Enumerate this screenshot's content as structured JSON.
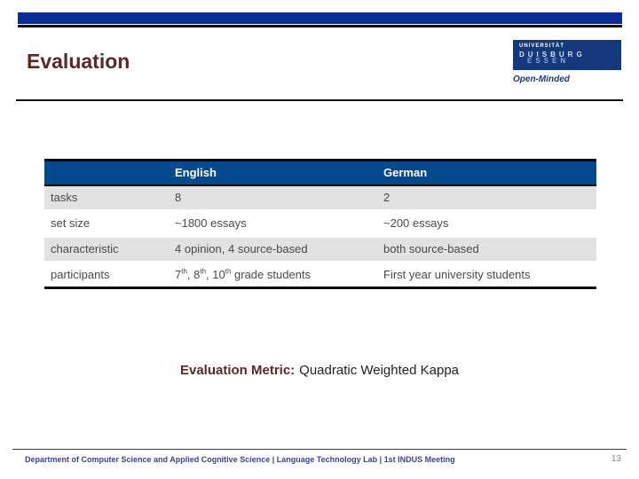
{
  "header": {
    "title": "Evaluation"
  },
  "logo": {
    "university": "UNIVERSITÄT",
    "city1": "DUISBURG",
    "city2": "ESSEN",
    "tagline": "Open-Minded"
  },
  "table": {
    "col_blank": "",
    "col_english": "English",
    "col_german": "German",
    "rows": [
      {
        "label": "tasks",
        "english": "8",
        "german": "2"
      },
      {
        "label": "set size",
        "english": "~1800 essays",
        "german": "~200 essays"
      },
      {
        "label": "characteristic",
        "english": "4 opinion, 4 source-based",
        "german": "both source-based"
      },
      {
        "label": "participants",
        "english_parts": {
          "n1": "7",
          "s1": "th",
          "n2": ", 8",
          "s2": "th",
          "n3": ", 10",
          "s3": "th",
          "tail": " grade students"
        },
        "german": "First year university students"
      }
    ]
  },
  "metric": {
    "label": "Evaluation Metric:",
    "value": "Quadratic Weighted Kappa"
  },
  "footer": {
    "text": "Department of Computer Science and Applied Cognitive Science |  Language Technology Lab | 1st INDUS Meeting",
    "page": "13"
  },
  "colors": {
    "top_bar_blue": "#0C2D96",
    "table_header_blue": "#05498F",
    "logo_navy": "#143A7D",
    "title_dark_red": "#5C2725",
    "row_stripe_gray": "#E2E2E2",
    "body_text_gray": "#4A4A4A",
    "footer_blue": "#39458C",
    "page_number_gray": "#8A8A8A"
  }
}
